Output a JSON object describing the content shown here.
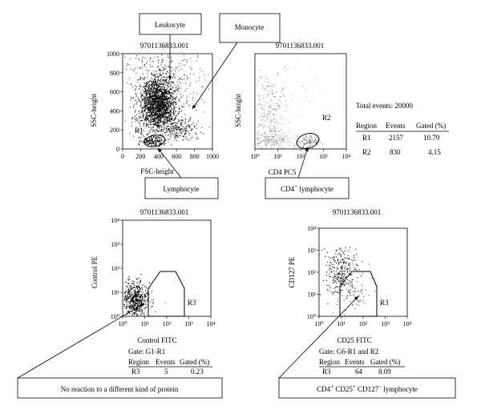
{
  "chart_data": [
    {
      "type": "scatter",
      "name": "Panel A",
      "title": "9701136833.001",
      "xlabel": "FSC-height",
      "ylabel": "SSC-height",
      "xlim": [
        0,
        1000
      ],
      "ylim": [
        0,
        1000
      ],
      "xticks": [
        "0",
        "200",
        "400",
        "600",
        "800",
        "1000"
      ],
      "yticks": [
        "0",
        "200",
        "400",
        "600",
        "800",
        "1000"
      ],
      "gate_label": "R1",
      "populations": [
        {
          "name": "Leukocyte",
          "x": 330,
          "y": 430
        },
        {
          "name": "Monocyte",
          "x": 560,
          "y": 230
        },
        {
          "name": "Lymphocyte",
          "x": 330,
          "y": 90
        }
      ]
    },
    {
      "type": "scatter",
      "name": "Panel B",
      "title": "9701136833.001",
      "xlabel": "CD4 PC5",
      "ylabel": "SSC-height",
      "xscale": "log",
      "xticks": [
        "10⁰",
        "10¹",
        "10²",
        "10³",
        "10⁴"
      ],
      "ylim": [
        0,
        1000
      ],
      "gate_label": "R2"
    },
    {
      "type": "scatter",
      "name": "Panel C",
      "title": "9701136833.001",
      "xlabel": "Control FITC",
      "ylabel": "Control PE",
      "xscale": "log",
      "yscale": "log",
      "xticks": [
        "10⁰",
        "10¹",
        "10²",
        "10³",
        "10⁴"
      ],
      "yticks": [
        "10⁰",
        "10¹",
        "10²",
        "10³",
        "10⁴"
      ],
      "gate_label": "R3"
    },
    {
      "type": "scatter",
      "name": "Panel D",
      "title": "9701136833.001",
      "xlabel": "CD25 FITC",
      "ylabel": "CD127 PE",
      "xscale": "log",
      "yscale": "log",
      "xticks": [
        "10⁰",
        "10¹",
        "10²",
        "10³",
        "10⁴"
      ],
      "yticks": [
        "10⁰",
        "10¹",
        "10²",
        "10³",
        "10⁴"
      ],
      "gate_label": "R3"
    }
  ],
  "labels": {
    "leukocyte": "Leukocyte",
    "monocyte": "Monocyte",
    "lymphocyte": "Lymphocyte",
    "cd4_lymph_prefix": "CD4",
    "cd4_lymph_sup": "+",
    "cd4_lymph_suffix": " lymphocyte",
    "no_reaction": "No reaction to a different kind of protein",
    "treg_a": "CD4",
    "treg_a_sup": "+",
    "treg_b": " CD25",
    "treg_b_sup": "+",
    "treg_c": " CD127",
    "treg_c_sup": "−",
    "treg_d": " lymphocyte"
  },
  "stats_top": {
    "total_events": "Total events: 20000",
    "headers": [
      "Region",
      "Events",
      "Gated (%)"
    ],
    "rows": [
      [
        "R1",
        "2157",
        "10.79"
      ],
      [
        "R2",
        "830",
        "4.15"
      ]
    ]
  },
  "stats_c": {
    "gate": "Gate: G1-R1",
    "headers": [
      "Region",
      "Events",
      "Gated (%)"
    ],
    "rows": [
      [
        "R3",
        "5",
        "0.23"
      ]
    ]
  },
  "stats_d": {
    "gate": "Gate: G6-R1 and R2",
    "headers": [
      "Region",
      "Events",
      "Gated (%)"
    ],
    "rows": [
      [
        "R3",
        "64",
        "8.09"
      ]
    ]
  }
}
